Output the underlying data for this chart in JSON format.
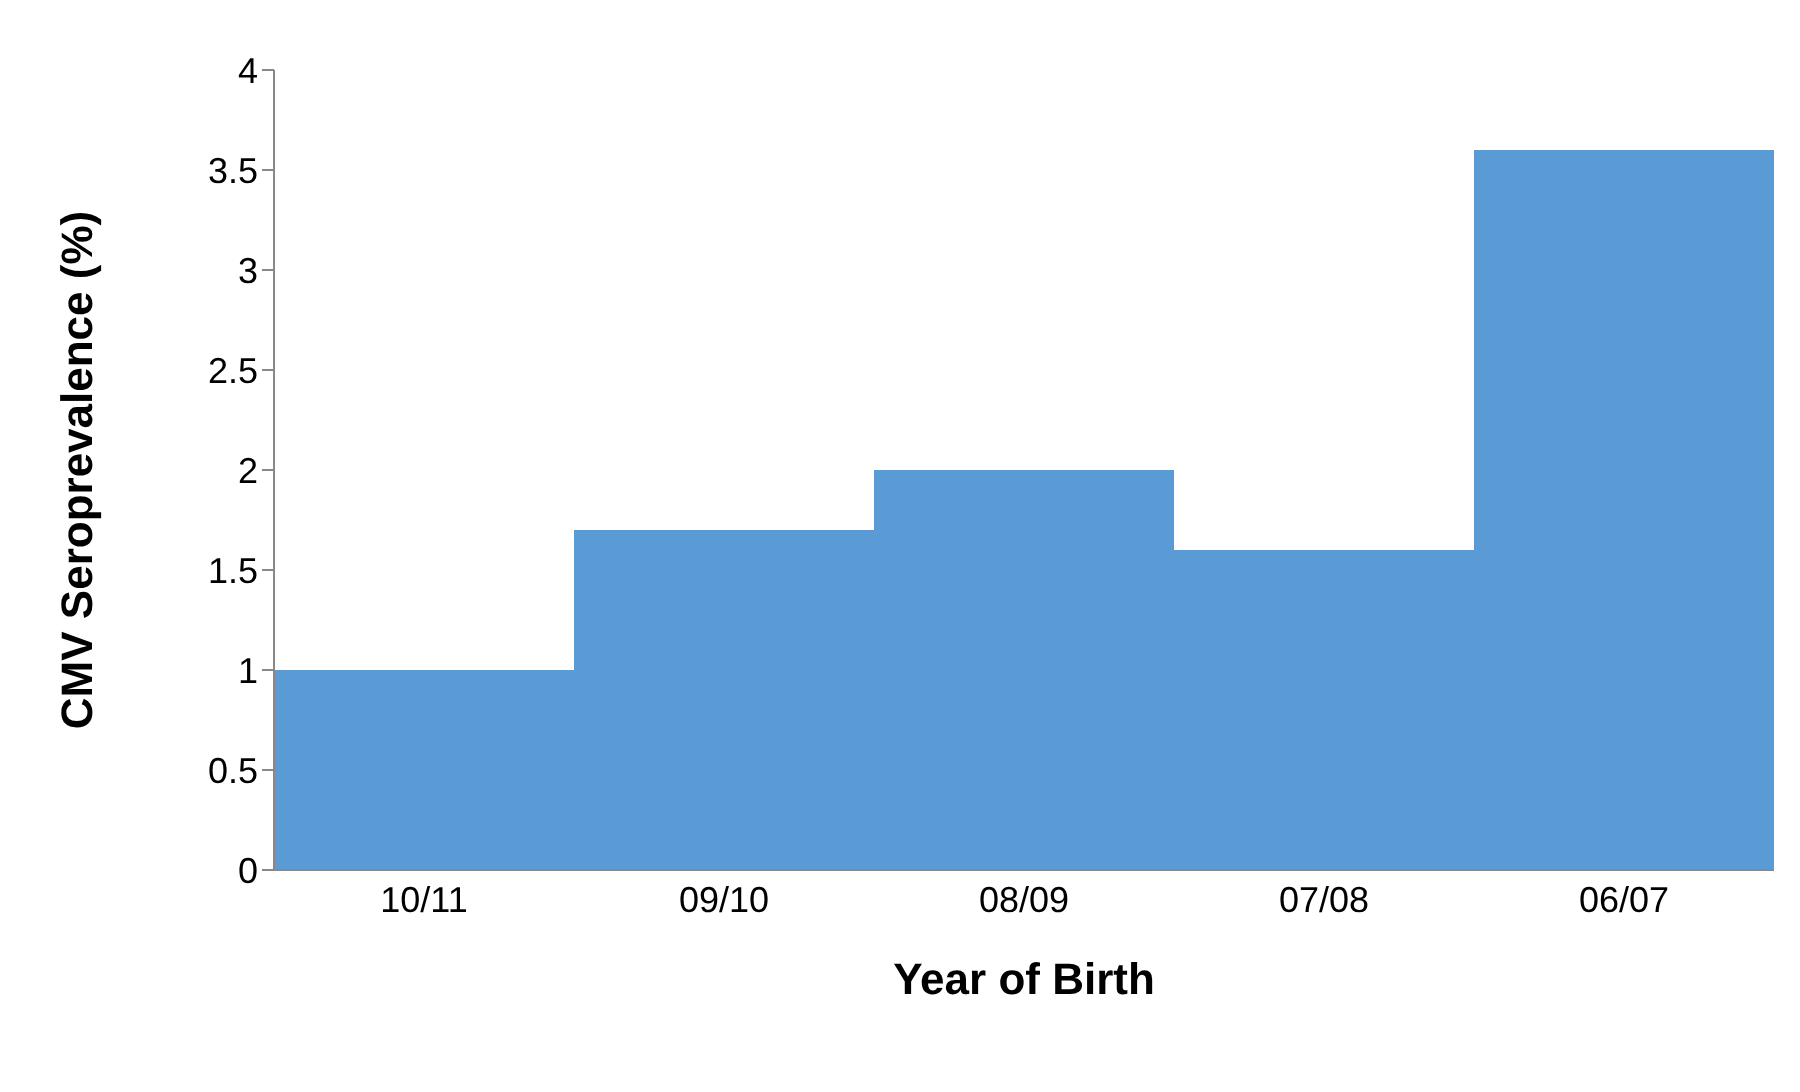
{
  "chart_data": {
    "type": "bar",
    "xlabel": "Year of Birth",
    "ylabel": "CMV Seroprevalence (%)",
    "categories": [
      "10/11",
      "09/10",
      "08/09",
      "07/08",
      "06/07"
    ],
    "values": [
      1,
      1.7,
      2,
      1.6,
      3.6
    ],
    "color": "#5b9bd5",
    "ylim": [
      0,
      4
    ],
    "yticks": [
      0,
      0.5,
      1,
      1.5,
      2,
      2.5,
      3,
      3.5,
      4
    ],
    "grid": false,
    "legend": false
  }
}
